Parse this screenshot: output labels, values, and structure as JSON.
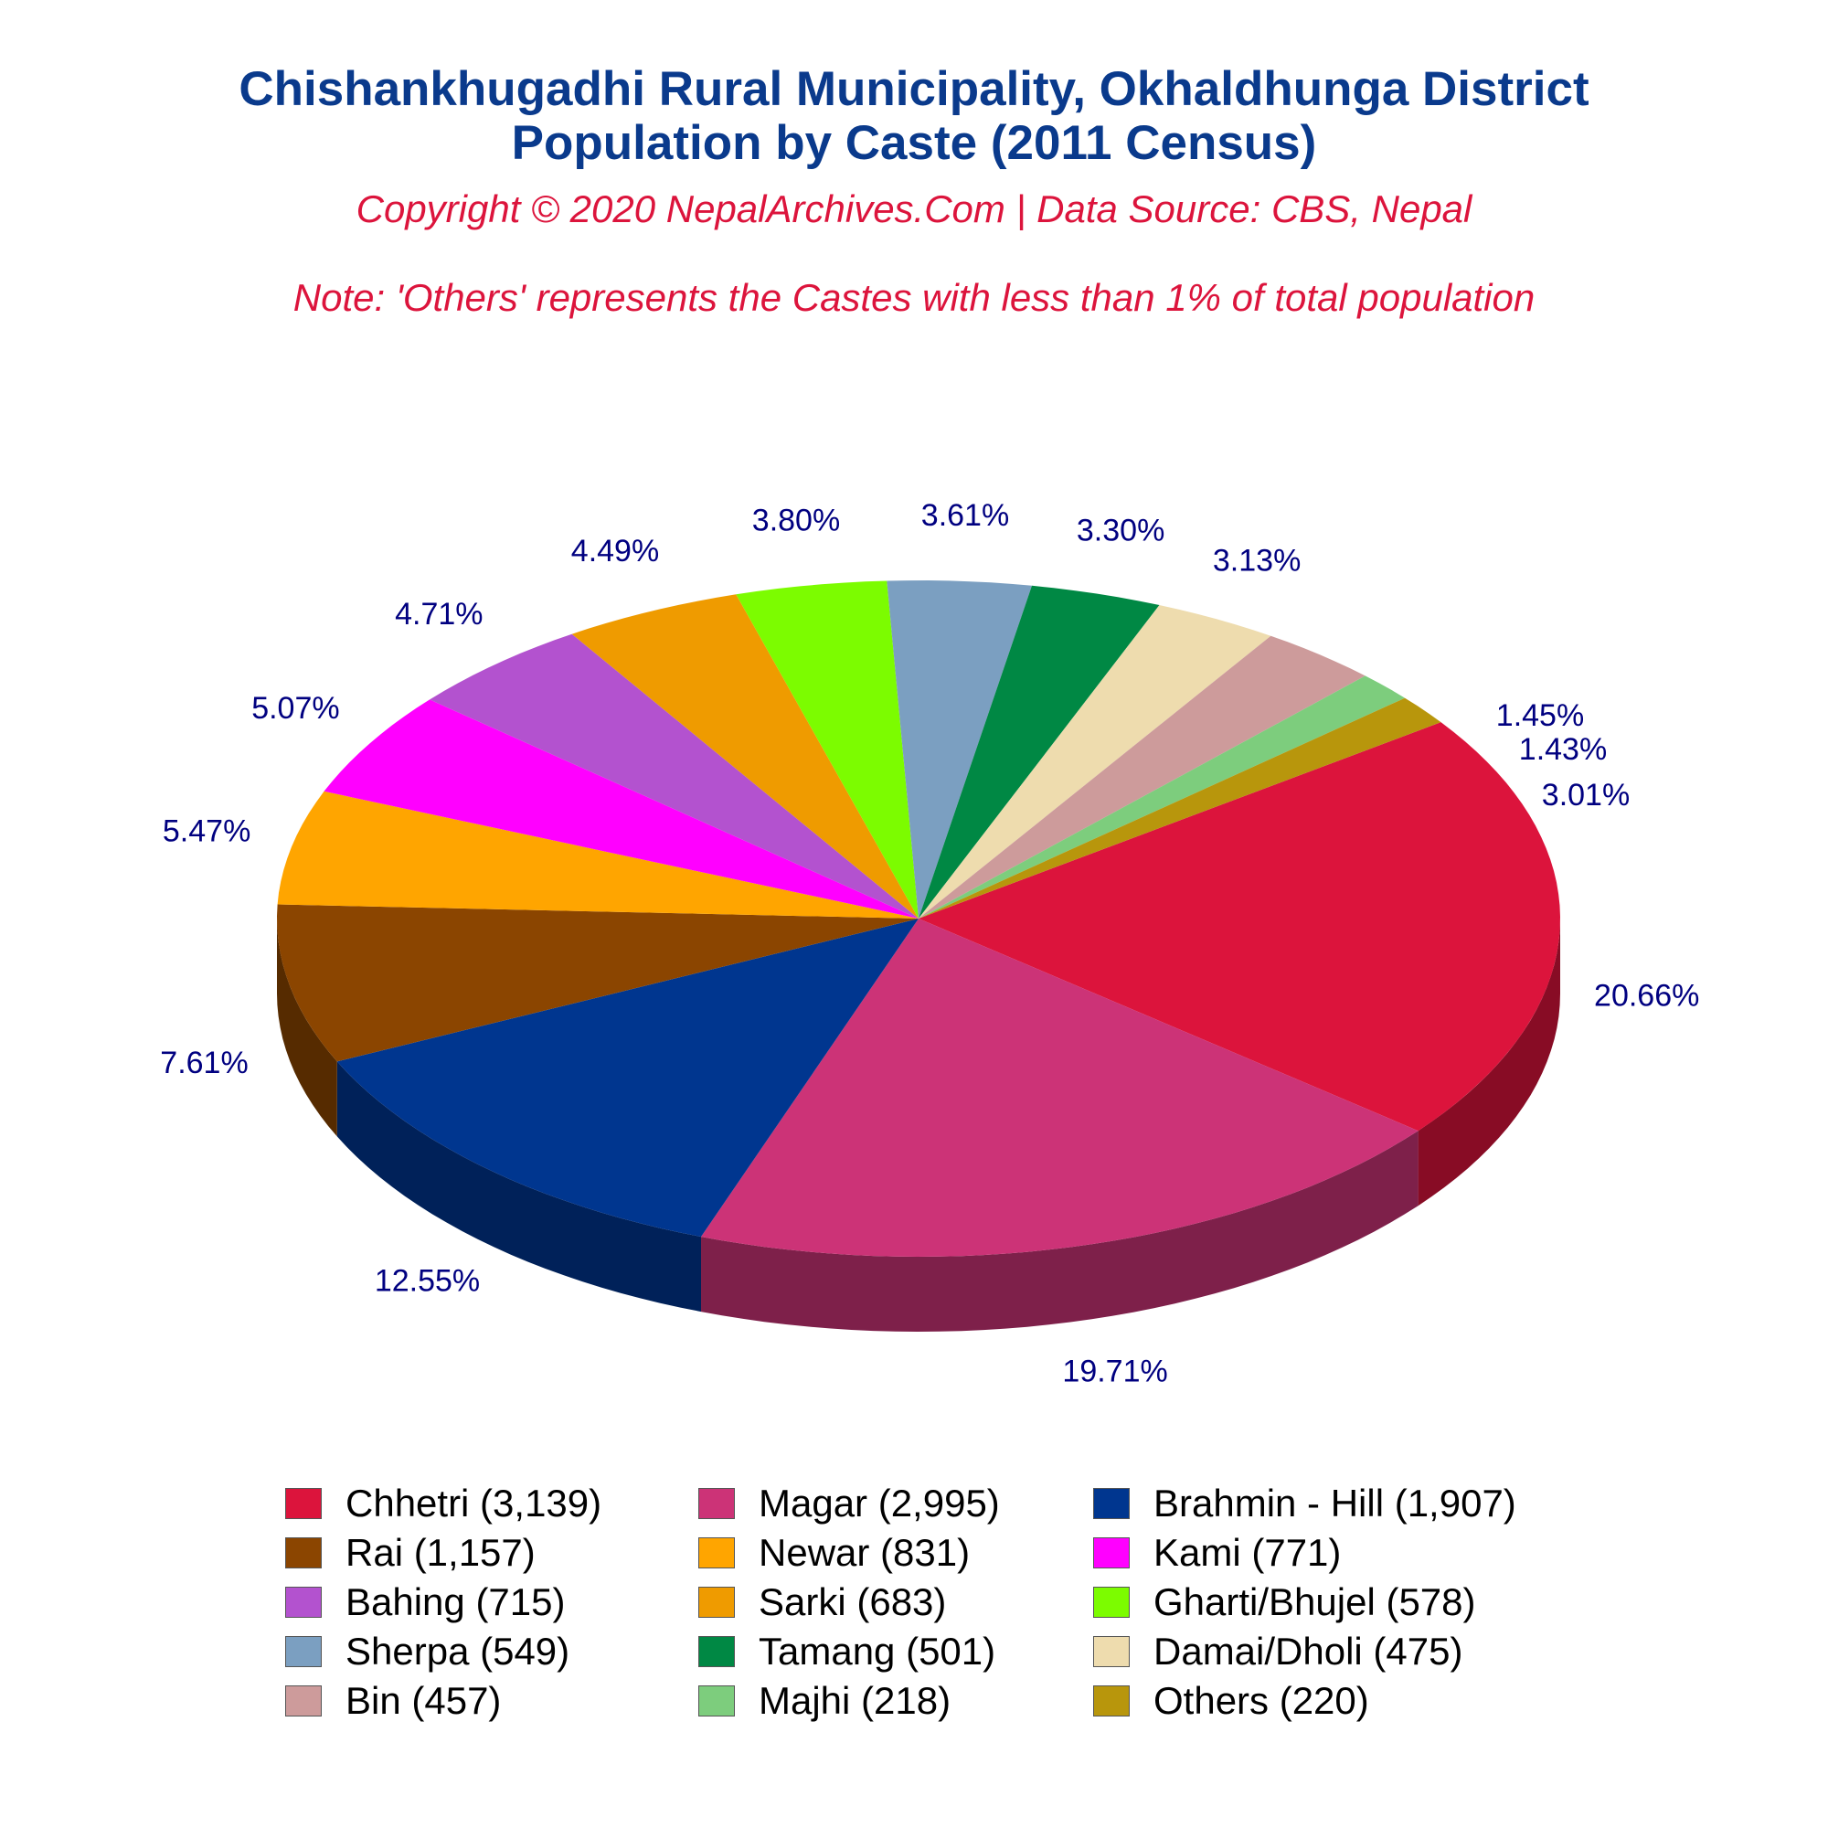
{
  "header": {
    "title_line1": "Chishankhugadhi Rural Municipality, Okhaldhunga District",
    "title_line2": "Population by Caste (2011 Census)",
    "copyright": "Copyright © 2020 NepalArchives.Com | Data Source: CBS, Nepal",
    "note": "Note: 'Others' represents the Castes with less than 1% of total population"
  },
  "chart_data": {
    "type": "pie",
    "style": "3d",
    "legend_position": "bottom",
    "slices": [
      {
        "label": "Chhetri (3,139)",
        "value": 3139,
        "pct_label": "20.66%",
        "color": "#dc143c"
      },
      {
        "label": "Magar (2,995)",
        "value": 2995,
        "pct_label": "19.71%",
        "color": "#cc3377"
      },
      {
        "label": "Brahmin - Hill (1,907)",
        "value": 1907,
        "pct_label": "12.55%",
        "color": "#00368f"
      },
      {
        "label": "Rai (1,157)",
        "value": 1157,
        "pct_label": "7.61%",
        "color": "#8b4500"
      },
      {
        "label": "Newar (831)",
        "value": 831,
        "pct_label": "5.47%",
        "color": "#ffa500"
      },
      {
        "label": "Kami (771)",
        "value": 771,
        "pct_label": "5.07%",
        "color": "#ff00ff"
      },
      {
        "label": "Bahing (715)",
        "value": 715,
        "pct_label": "4.71%",
        "color": "#b352cf"
      },
      {
        "label": "Sarki (683)",
        "value": 683,
        "pct_label": "4.49%",
        "color": "#ef9b00"
      },
      {
        "label": "Gharti/Bhujel (578)",
        "value": 578,
        "pct_label": "3.80%",
        "color": "#7cfc00"
      },
      {
        "label": "Sherpa (549)",
        "value": 549,
        "pct_label": "3.61%",
        "color": "#7b9fc1"
      },
      {
        "label": "Tamang (501)",
        "value": 501,
        "pct_label": "3.30%",
        "color": "#008844"
      },
      {
        "label": "Damai/Dholi (475)",
        "value": 475,
        "pct_label": "3.13%",
        "color": "#eedcae"
      },
      {
        "label": "Bin (457)",
        "value": 457,
        "pct_label": "3.01%",
        "color": "#cd9b9b"
      },
      {
        "label": "Majhi (218)",
        "value": 218,
        "pct_label": "1.43%",
        "color": "#7dcd7d"
      },
      {
        "label": "Others (220)",
        "value": 220,
        "pct_label": "1.45%",
        "color": "#b8960c"
      }
    ]
  }
}
